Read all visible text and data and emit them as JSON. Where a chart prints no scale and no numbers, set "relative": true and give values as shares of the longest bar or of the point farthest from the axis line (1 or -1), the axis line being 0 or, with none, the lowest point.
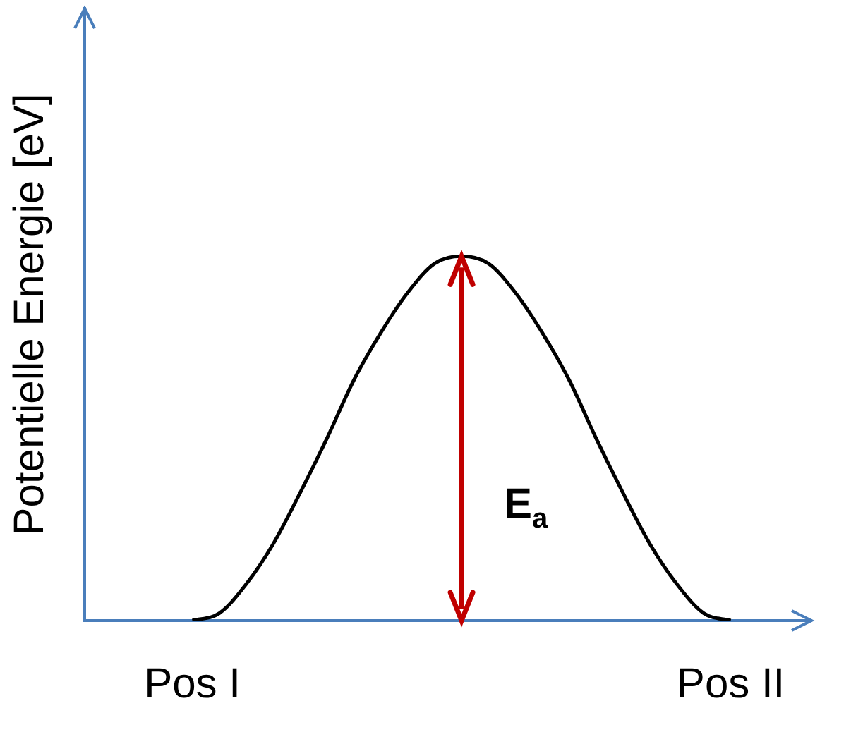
{
  "chart_data": {
    "type": "line",
    "relative": true,
    "ylabel": "Potentielle Energie [eV]",
    "categories": [
      null,
      null,
      null,
      null,
      "Pos I",
      null,
      null,
      null,
      null,
      null,
      null,
      null,
      null,
      null,
      null,
      null,
      null,
      null,
      null,
      null,
      null,
      null,
      null,
      null,
      "Pos II",
      null,
      null,
      null
    ],
    "series": [
      {
        "color": "#000000",
        "values": [
          null,
          null,
          null,
          null,
          0,
          0.02,
          0.1,
          0.21,
          0.35,
          0.5,
          0.66,
          0.79,
          0.9,
          0.98,
          1,
          0.98,
          0.9,
          0.79,
          0.66,
          0.5,
          0.35,
          0.21,
          0.1,
          0.02,
          0,
          null,
          null,
          null
        ]
      }
    ],
    "annotations": [
      "E$_{a}$"
    ],
    "marker": "none",
    "line_style": "solid",
    "grid": false,
    "legend": false
  }
}
